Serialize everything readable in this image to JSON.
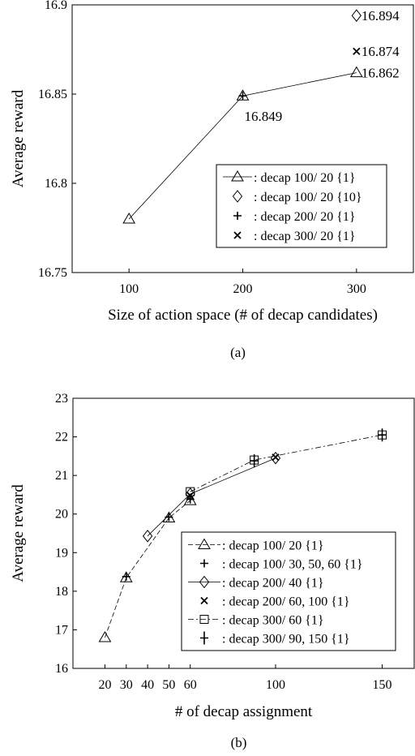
{
  "chart_data": [
    {
      "type": "line",
      "panel_label": "(a)",
      "xlabel": "Size of action space (# of decap candidates)",
      "ylabel": "Average reward",
      "xlim": [
        50,
        350
      ],
      "ylim": [
        16.75,
        16.9
      ],
      "x_ticks": [
        100,
        200,
        300
      ],
      "y_ticks": [
        16.75,
        16.8,
        16.85,
        16.9
      ],
      "y_tick_labels": [
        "16.75",
        "16.8",
        "16.85",
        "16.9"
      ],
      "grid": false,
      "legend_position": "bottom-right",
      "series": [
        {
          "name": ": decap 100/ 20 {1}",
          "marker": "triangle",
          "line": "solid",
          "points": [
            [
              100,
              16.78
            ],
            [
              200,
              16.849
            ],
            [
              300,
              16.862
            ]
          ]
        },
        {
          "name": ": decap 100/ 20 {10}",
          "marker": "diamond",
          "line": "none",
          "points": [
            [
              300,
              16.894
            ]
          ]
        },
        {
          "name": ": decap 200/ 20 {1}",
          "marker": "plus",
          "line": "none",
          "points": [
            [
              200,
              16.849
            ]
          ]
        },
        {
          "name": ": decap 300/ 20 {1}",
          "marker": "x",
          "line": "none",
          "points": [
            [
              300,
              16.874
            ]
          ]
        }
      ],
      "annotations": [
        {
          "text": "16.894",
          "x": 300,
          "y": 16.894,
          "anchor": "right"
        },
        {
          "text": "16.874",
          "x": 300,
          "y": 16.874,
          "anchor": "right"
        },
        {
          "text": "16.862",
          "x": 300,
          "y": 16.862,
          "anchor": "right"
        },
        {
          "text": "16.849",
          "x": 200,
          "y": 16.849,
          "anchor": "below"
        }
      ]
    },
    {
      "type": "line",
      "panel_label": "(b)",
      "xlabel": "# of decap assignment",
      "ylabel": "Average reward",
      "xlim": [
        5,
        165
      ],
      "ylim": [
        16,
        23
      ],
      "x_ticks": [
        20,
        30,
        40,
        50,
        60,
        100,
        150
      ],
      "y_ticks": [
        16,
        17,
        18,
        19,
        20,
        21,
        22,
        23
      ],
      "grid": false,
      "legend_position": "bottom-right",
      "series": [
        {
          "name": ": decap 100/ 20 {1}",
          "marker": "triangle",
          "line": "dashed",
          "points": [
            [
              20,
              16.8
            ],
            [
              30,
              18.35
            ],
            [
              50,
              19.9
            ],
            [
              60,
              20.35
            ]
          ]
        },
        {
          "name": ": decap 100/ 30, 50, 60 {1}",
          "marker": "plus",
          "line": "none",
          "points": [
            [
              30,
              18.38
            ],
            [
              50,
              19.92
            ],
            [
              60,
              20.38
            ]
          ]
        },
        {
          "name": ": decap 200/ 40 {1}",
          "marker": "diamond",
          "line": "solid",
          "points": [
            [
              40,
              19.43
            ],
            [
              60,
              20.52
            ],
            [
              100,
              21.45
            ]
          ]
        },
        {
          "name": ": decap 200/ 60, 100 {1}",
          "marker": "x",
          "line": "none",
          "points": [
            [
              60,
              20.48
            ],
            [
              100,
              21.47
            ]
          ]
        },
        {
          "name": ": decap 300/ 60 {1}",
          "marker": "square",
          "line": "dashdot",
          "points": [
            [
              60,
              20.58
            ],
            [
              90,
              21.4
            ],
            [
              150,
              22.05
            ]
          ]
        },
        {
          "name": ": decap 300/ 90, 150 {1}",
          "marker": "bigplus",
          "line": "none",
          "points": [
            [
              90,
              21.38
            ],
            [
              150,
              22.05
            ]
          ]
        }
      ]
    }
  ]
}
